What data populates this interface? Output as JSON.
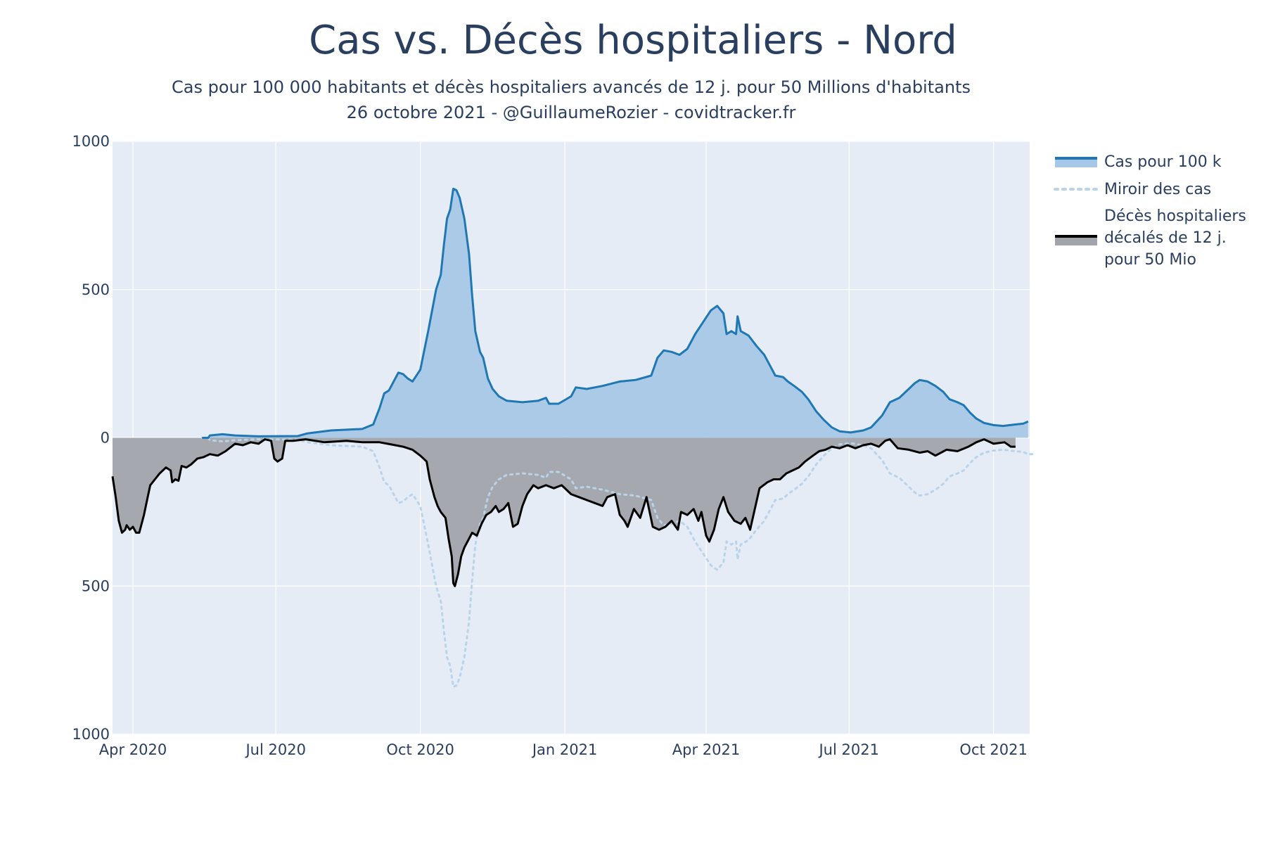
{
  "chart_data": {
    "type": "area",
    "title": "Cas vs. Décès hospitaliers - Nord",
    "subtitle_lines": [
      "Cas pour 100 000 habitants et décès hospitaliers avancés de 12 j. pour 50 Millions d'habitants",
      "26 octobre 2021 - @GuillaumeRozier - covidtracker.fr"
    ],
    "xlabel": "",
    "ylabel": "",
    "ylim": [
      -1000,
      1000
    ],
    "xlim": [
      "2020-03-19",
      "2021-10-24"
    ],
    "grid": true,
    "legend_position": "right",
    "y_ticks": [
      {
        "value": 1000,
        "label": "1000"
      },
      {
        "value": 500,
        "label": "500"
      },
      {
        "value": 0,
        "label": "0"
      },
      {
        "value": -500,
        "label": "500"
      },
      {
        "value": -1000,
        "label": "1000"
      }
    ],
    "x_ticks": [
      {
        "date": "2020-04-01",
        "label": "Apr 2020"
      },
      {
        "date": "2020-07-01",
        "label": "Jul 2020"
      },
      {
        "date": "2020-10-01",
        "label": "Oct 2020"
      },
      {
        "date": "2021-01-01",
        "label": "Jan 2021"
      },
      {
        "date": "2021-04-01",
        "label": "Apr 2021"
      },
      {
        "date": "2021-07-01",
        "label": "Jul 2021"
      },
      {
        "date": "2021-10-01",
        "label": "Oct 2021"
      }
    ],
    "colors": {
      "plot_bg": "#e5ecf6",
      "grid": "#ffffff",
      "cases_line": "#1f77b4",
      "cases_fill": "#a6c8e6",
      "mirror_line": "#b9d3ea",
      "deaths_line": "#000000",
      "deaths_fill": "#a2a4ab"
    },
    "series": [
      {
        "name": "Cas pour 100 k",
        "style": "filled line above zero",
        "points": [
          [
            "2020-05-15",
            0
          ],
          [
            "2020-05-19",
            0
          ],
          [
            "2020-05-20",
            8
          ],
          [
            "2020-05-28",
            12
          ],
          [
            "2020-06-05",
            8
          ],
          [
            "2020-06-20",
            5
          ],
          [
            "2020-07-15",
            6
          ],
          [
            "2020-07-21",
            15
          ],
          [
            "2020-08-05",
            25
          ],
          [
            "2020-08-25",
            30
          ],
          [
            "2020-09-01",
            45
          ],
          [
            "2020-09-05",
            100
          ],
          [
            "2020-09-08",
            150
          ],
          [
            "2020-09-11",
            160
          ],
          [
            "2020-09-17",
            220
          ],
          [
            "2020-09-20",
            215
          ],
          [
            "2020-09-23",
            200
          ],
          [
            "2020-09-26",
            190
          ],
          [
            "2020-10-01",
            230
          ],
          [
            "2020-10-06",
            360
          ],
          [
            "2020-10-11",
            500
          ],
          [
            "2020-10-14",
            550
          ],
          [
            "2020-10-16",
            650
          ],
          [
            "2020-10-18",
            740
          ],
          [
            "2020-10-20",
            770
          ],
          [
            "2020-10-22",
            840
          ],
          [
            "2020-10-24",
            835
          ],
          [
            "2020-10-26",
            810
          ],
          [
            "2020-10-29",
            740
          ],
          [
            "2020-11-01",
            620
          ],
          [
            "2020-11-03",
            480
          ],
          [
            "2020-11-05",
            360
          ],
          [
            "2020-11-08",
            290
          ],
          [
            "2020-11-10",
            270
          ],
          [
            "2020-11-13",
            200
          ],
          [
            "2020-11-16",
            165
          ],
          [
            "2020-11-20",
            140
          ],
          [
            "2020-11-25",
            125
          ],
          [
            "2020-12-05",
            120
          ],
          [
            "2020-12-15",
            125
          ],
          [
            "2020-12-20",
            135
          ],
          [
            "2020-12-22",
            115
          ],
          [
            "2020-12-28",
            115
          ],
          [
            "2021-01-05",
            140
          ],
          [
            "2021-01-08",
            170
          ],
          [
            "2021-01-15",
            165
          ],
          [
            "2021-01-25",
            175
          ],
          [
            "2021-02-05",
            190
          ],
          [
            "2021-02-15",
            195
          ],
          [
            "2021-02-25",
            210
          ],
          [
            "2021-03-01",
            270
          ],
          [
            "2021-03-05",
            295
          ],
          [
            "2021-03-10",
            290
          ],
          [
            "2021-03-15",
            280
          ],
          [
            "2021-03-20",
            300
          ],
          [
            "2021-03-25",
            350
          ],
          [
            "2021-03-30",
            390
          ],
          [
            "2021-04-04",
            430
          ],
          [
            "2021-04-08",
            445
          ],
          [
            "2021-04-12",
            420
          ],
          [
            "2021-04-14",
            350
          ],
          [
            "2021-04-17",
            360
          ],
          [
            "2021-04-20",
            350
          ],
          [
            "2021-04-21",
            410
          ],
          [
            "2021-04-23",
            360
          ],
          [
            "2021-04-28",
            345
          ],
          [
            "2021-05-03",
            310
          ],
          [
            "2021-05-08",
            280
          ],
          [
            "2021-05-12",
            240
          ],
          [
            "2021-05-15",
            210
          ],
          [
            "2021-05-20",
            205
          ],
          [
            "2021-05-23",
            190
          ],
          [
            "2021-05-27",
            175
          ],
          [
            "2021-06-01",
            155
          ],
          [
            "2021-06-05",
            130
          ],
          [
            "2021-06-10",
            90
          ],
          [
            "2021-06-15",
            60
          ],
          [
            "2021-06-20",
            35
          ],
          [
            "2021-06-25",
            22
          ],
          [
            "2021-07-02",
            18
          ],
          [
            "2021-07-10",
            25
          ],
          [
            "2021-07-15",
            35
          ],
          [
            "2021-07-22",
            75
          ],
          [
            "2021-07-27",
            120
          ],
          [
            "2021-08-02",
            135
          ],
          [
            "2021-08-08",
            165
          ],
          [
            "2021-08-12",
            185
          ],
          [
            "2021-08-15",
            195
          ],
          [
            "2021-08-20",
            190
          ],
          [
            "2021-08-25",
            175
          ],
          [
            "2021-08-30",
            155
          ],
          [
            "2021-09-03",
            130
          ],
          [
            "2021-09-08",
            120
          ],
          [
            "2021-09-12",
            110
          ],
          [
            "2021-09-16",
            85
          ],
          [
            "2021-09-20",
            65
          ],
          [
            "2021-09-25",
            50
          ],
          [
            "2021-10-01",
            43
          ],
          [
            "2021-10-07",
            40
          ],
          [
            "2021-10-15",
            45
          ],
          [
            "2021-10-20",
            48
          ],
          [
            "2021-10-23",
            55
          ]
        ]
      },
      {
        "name": "Miroir des cas",
        "style": "dotted line, mirror of cases below zero",
        "mirror_of": "Cas pour 100 k",
        "end_extend": [
          "2021-10-26",
          -55
        ]
      },
      {
        "name": "Décès hospitaliers décalés de 12 j. pour 50 Mio",
        "legend_lines": [
          "Décès hospitaliers",
          "décalés de 12 j.",
          "pour 50 Mio"
        ],
        "style": "filled line below zero",
        "points": [
          [
            "2020-03-19",
            -130
          ],
          [
            "2020-03-21",
            -200
          ],
          [
            "2020-03-23",
            -280
          ],
          [
            "2020-03-25",
            -320
          ],
          [
            "2020-03-27",
            -310
          ],
          [
            "2020-03-28",
            -295
          ],
          [
            "2020-03-30",
            -310
          ],
          [
            "2020-04-01",
            -300
          ],
          [
            "2020-04-03",
            -320
          ],
          [
            "2020-04-05",
            -320
          ],
          [
            "2020-04-08",
            -260
          ],
          [
            "2020-04-10",
            -210
          ],
          [
            "2020-04-12",
            -160
          ],
          [
            "2020-04-15",
            -140
          ],
          [
            "2020-04-18",
            -120
          ],
          [
            "2020-04-20",
            -110
          ],
          [
            "2020-04-22",
            -100
          ],
          [
            "2020-04-25",
            -110
          ],
          [
            "2020-04-26",
            -150
          ],
          [
            "2020-04-28",
            -140
          ],
          [
            "2020-04-30",
            -145
          ],
          [
            "2020-05-02",
            -95
          ],
          [
            "2020-05-05",
            -100
          ],
          [
            "2020-05-08",
            -90
          ],
          [
            "2020-05-12",
            -70
          ],
          [
            "2020-05-16",
            -65
          ],
          [
            "2020-05-20",
            -55
          ],
          [
            "2020-05-25",
            -60
          ],
          [
            "2020-05-30",
            -45
          ],
          [
            "2020-06-05",
            -20
          ],
          [
            "2020-06-10",
            -25
          ],
          [
            "2020-06-15",
            -15
          ],
          [
            "2020-06-20",
            -20
          ],
          [
            "2020-06-24",
            -5
          ],
          [
            "2020-06-28",
            -10
          ],
          [
            "2020-06-30",
            -70
          ],
          [
            "2020-07-02",
            -80
          ],
          [
            "2020-07-05",
            -70
          ],
          [
            "2020-07-07",
            -10
          ],
          [
            "2020-07-12",
            -10
          ],
          [
            "2020-07-20",
            -5
          ],
          [
            "2020-08-01",
            -15
          ],
          [
            "2020-08-15",
            -10
          ],
          [
            "2020-08-25",
            -15
          ],
          [
            "2020-09-05",
            -15
          ],
          [
            "2020-09-10",
            -20
          ],
          [
            "2020-09-20",
            -30
          ],
          [
            "2020-09-26",
            -40
          ],
          [
            "2020-10-01",
            -60
          ],
          [
            "2020-10-05",
            -80
          ],
          [
            "2020-10-07",
            -140
          ],
          [
            "2020-10-10",
            -200
          ],
          [
            "2020-10-12",
            -230
          ],
          [
            "2020-10-14",
            -250
          ],
          [
            "2020-10-17",
            -270
          ],
          [
            "2020-10-19",
            -340
          ],
          [
            "2020-10-21",
            -400
          ],
          [
            "2020-10-22",
            -490
          ],
          [
            "2020-10-23",
            -500
          ],
          [
            "2020-10-25",
            -460
          ],
          [
            "2020-10-27",
            -400
          ],
          [
            "2020-10-29",
            -370
          ],
          [
            "2020-11-01",
            -340
          ],
          [
            "2020-11-03",
            -320
          ],
          [
            "2020-11-06",
            -330
          ],
          [
            "2020-11-09",
            -290
          ],
          [
            "2020-11-12",
            -260
          ],
          [
            "2020-11-15",
            -250
          ],
          [
            "2020-11-18",
            -230
          ],
          [
            "2020-11-20",
            -250
          ],
          [
            "2020-11-23",
            -240
          ],
          [
            "2020-11-26",
            -220
          ],
          [
            "2020-11-29",
            -300
          ],
          [
            "2020-12-02",
            -290
          ],
          [
            "2020-12-05",
            -230
          ],
          [
            "2020-12-08",
            -190
          ],
          [
            "2020-12-12",
            -160
          ],
          [
            "2020-12-15",
            -170
          ],
          [
            "2020-12-20",
            -160
          ],
          [
            "2020-12-25",
            -170
          ],
          [
            "2020-12-30",
            -160
          ],
          [
            "2021-01-05",
            -190
          ],
          [
            "2021-01-10",
            -200
          ],
          [
            "2021-01-15",
            -210
          ],
          [
            "2021-01-20",
            -220
          ],
          [
            "2021-01-25",
            -230
          ],
          [
            "2021-01-28",
            -200
          ],
          [
            "2021-02-02",
            -190
          ],
          [
            "2021-02-05",
            -260
          ],
          [
            "2021-02-08",
            -280
          ],
          [
            "2021-02-10",
            -300
          ],
          [
            "2021-02-14",
            -240
          ],
          [
            "2021-02-18",
            -270
          ],
          [
            "2021-02-22",
            -200
          ],
          [
            "2021-02-26",
            -300
          ],
          [
            "2021-03-02",
            -310
          ],
          [
            "2021-03-06",
            -300
          ],
          [
            "2021-03-10",
            -280
          ],
          [
            "2021-03-14",
            -310
          ],
          [
            "2021-03-16",
            -250
          ],
          [
            "2021-03-20",
            -260
          ],
          [
            "2021-03-24",
            -240
          ],
          [
            "2021-03-27",
            -280
          ],
          [
            "2021-03-29",
            -250
          ],
          [
            "2021-04-01",
            -330
          ],
          [
            "2021-04-03",
            -350
          ],
          [
            "2021-04-06",
            -310
          ],
          [
            "2021-04-09",
            -240
          ],
          [
            "2021-04-12",
            -200
          ],
          [
            "2021-04-15",
            -250
          ],
          [
            "2021-04-19",
            -280
          ],
          [
            "2021-04-23",
            -290
          ],
          [
            "2021-04-26",
            -270
          ],
          [
            "2021-04-29",
            -310
          ],
          [
            "2021-05-02",
            -240
          ],
          [
            "2021-05-05",
            -170
          ],
          [
            "2021-05-10",
            -150
          ],
          [
            "2021-05-14",
            -140
          ],
          [
            "2021-05-18",
            -140
          ],
          [
            "2021-05-22",
            -120
          ],
          [
            "2021-05-26",
            -110
          ],
          [
            "2021-05-30",
            -100
          ],
          [
            "2021-06-03",
            -80
          ],
          [
            "2021-06-08",
            -60
          ],
          [
            "2021-06-12",
            -45
          ],
          [
            "2021-06-16",
            -40
          ],
          [
            "2021-06-20",
            -30
          ],
          [
            "2021-06-25",
            -35
          ],
          [
            "2021-06-30",
            -25
          ],
          [
            "2021-07-05",
            -35
          ],
          [
            "2021-07-10",
            -25
          ],
          [
            "2021-07-15",
            -20
          ],
          [
            "2021-07-20",
            -30
          ],
          [
            "2021-07-24",
            -10
          ],
          [
            "2021-07-27",
            -5
          ],
          [
            "2021-08-01",
            -35
          ],
          [
            "2021-08-08",
            -40
          ],
          [
            "2021-08-15",
            -50
          ],
          [
            "2021-08-20",
            -45
          ],
          [
            "2021-08-25",
            -60
          ],
          [
            "2021-09-01",
            -40
          ],
          [
            "2021-09-08",
            -45
          ],
          [
            "2021-09-15",
            -30
          ],
          [
            "2021-09-20",
            -15
          ],
          [
            "2021-09-25",
            -5
          ],
          [
            "2021-10-01",
            -20
          ],
          [
            "2021-10-08",
            -15
          ],
          [
            "2021-10-12",
            -30
          ],
          [
            "2021-10-15",
            -30
          ]
        ]
      }
    ]
  }
}
